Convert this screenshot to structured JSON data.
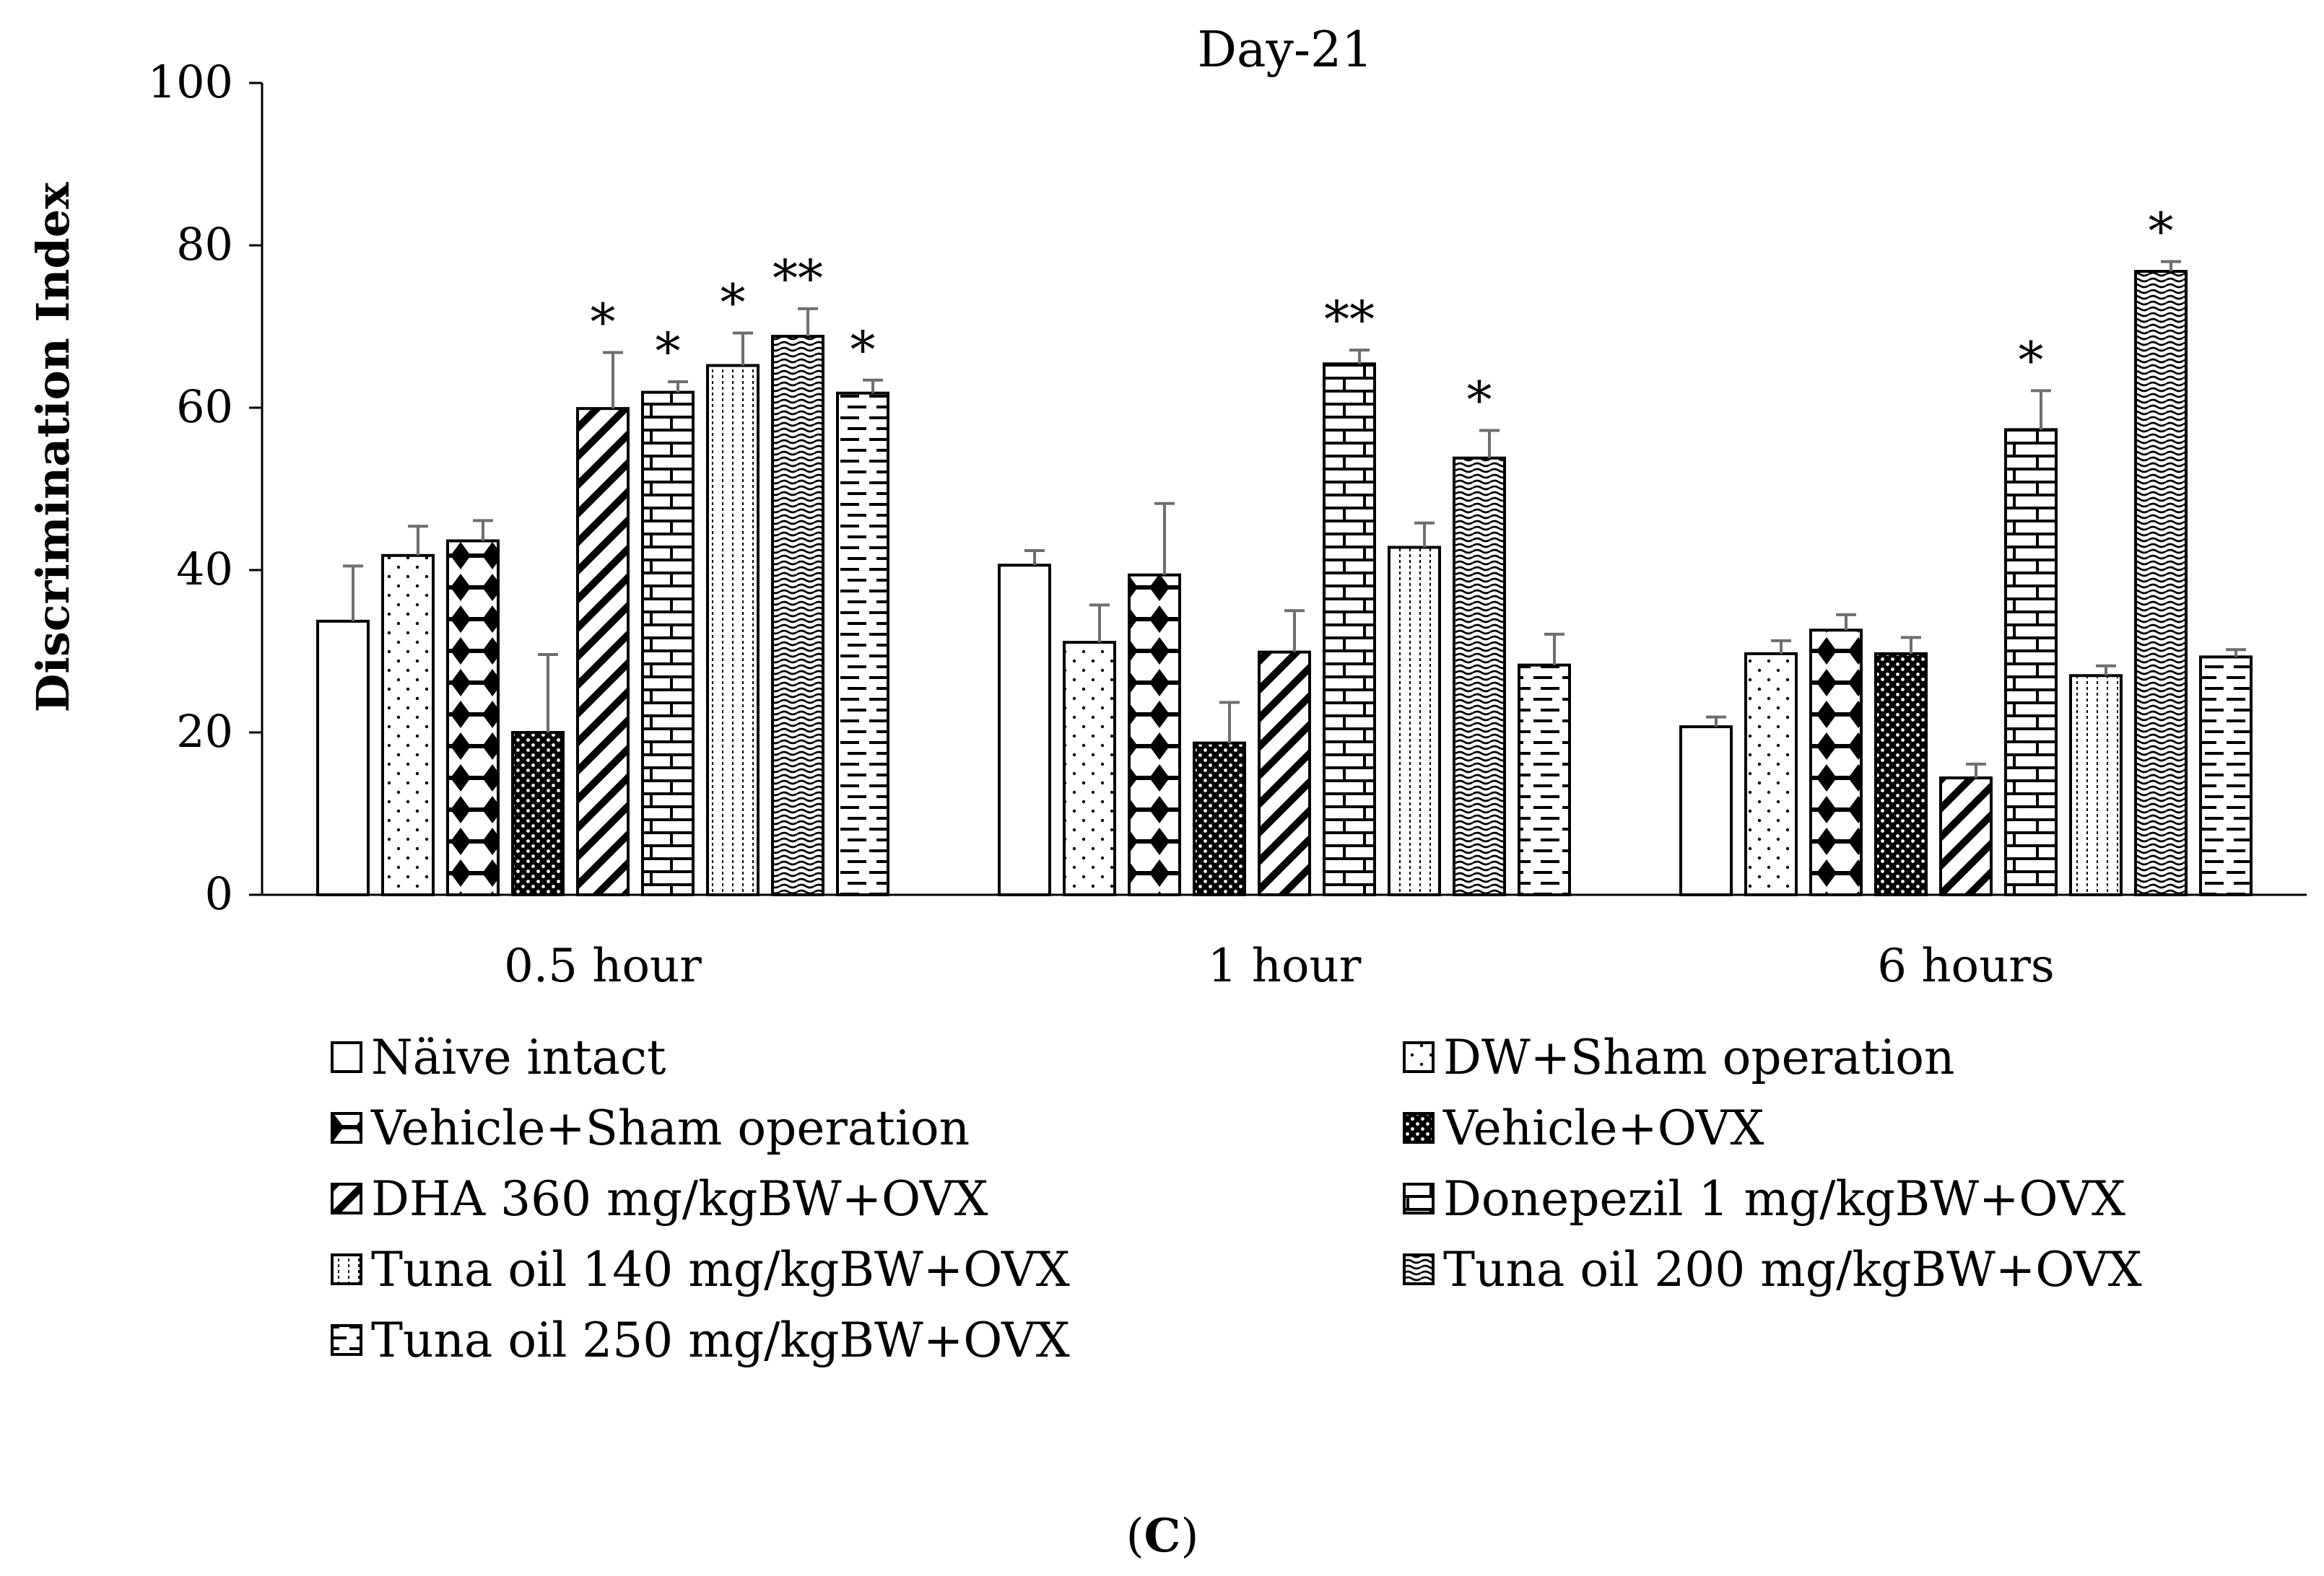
{
  "chart_data": {
    "type": "bar",
    "title": "Day-21",
    "xlabel": "",
    "ylabel": "Discrimination Index",
    "ylim": [
      0,
      100
    ],
    "yticks": [
      0,
      20,
      40,
      60,
      80,
      100
    ],
    "categories": [
      "0.5 hour",
      "1 hour",
      "6 hours"
    ],
    "series": [
      {
        "name": "Näive intact",
        "pattern": "plain",
        "values": [
          33.7,
          40.6,
          20.7
        ],
        "errors": [
          6.8,
          1.8,
          1.2
        ],
        "significance": [
          "",
          "",
          ""
        ]
      },
      {
        "name": "DW+Sham operation",
        "pattern": "dots",
        "values": [
          41.8,
          31.1,
          29.7
        ],
        "errors": [
          3.6,
          4.6,
          1.6
        ],
        "significance": [
          "",
          "",
          ""
        ]
      },
      {
        "name": "Vehicle+Sham operation",
        "pattern": "diamonds",
        "values": [
          43.6,
          39.4,
          32.6
        ],
        "errors": [
          2.5,
          8.8,
          1.9
        ],
        "significance": [
          "",
          "",
          ""
        ]
      },
      {
        "name": "Vehicle+OVX",
        "pattern": "checker",
        "values": [
          20.0,
          18.7,
          29.7
        ],
        "errors": [
          9.6,
          5.0,
          2.0
        ],
        "significance": [
          "",
          "",
          ""
        ]
      },
      {
        "name": "DHA 360 mg/kgBW+OVX",
        "pattern": "diagonal",
        "values": [
          59.9,
          29.9,
          14.4
        ],
        "errors": [
          6.9,
          5.1,
          1.7
        ],
        "significance": [
          "*",
          "",
          ""
        ]
      },
      {
        "name": "Donepezil 1 mg/kgBW+OVX",
        "pattern": "bricks",
        "values": [
          61.9,
          65.4,
          57.3
        ],
        "errors": [
          1.3,
          1.7,
          4.8
        ],
        "significance": [
          "*",
          "**",
          "*"
        ]
      },
      {
        "name": "Tuna oil 140 mg/kgBW+OVX",
        "pattern": "vlines",
        "values": [
          65.2,
          42.8,
          27.0
        ],
        "errors": [
          4.0,
          3.0,
          1.2
        ],
        "significance": [
          "*",
          "",
          ""
        ]
      },
      {
        "name": "Tuna oil 200 mg/kgBW+OVX",
        "pattern": "waves",
        "values": [
          68.8,
          53.8,
          76.8
        ],
        "errors": [
          3.4,
          3.4,
          1.2
        ],
        "significance": [
          "**",
          "*",
          "*"
        ]
      },
      {
        "name": "Tuna oil 250 mg/kgBW+OVX",
        "pattern": "dashes",
        "values": [
          61.8,
          28.3,
          29.3
        ],
        "errors": [
          1.6,
          3.8,
          0.9
        ],
        "significance": [
          "*",
          "",
          ""
        ]
      }
    ],
    "legend_position": "bottom",
    "grid": false
  },
  "panel_label": {
    "open": "(",
    "letter": "C",
    "close": ")"
  }
}
